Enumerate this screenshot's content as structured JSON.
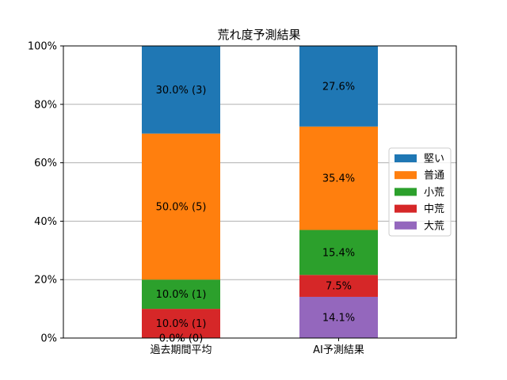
{
  "chart_data": {
    "type": "bar",
    "stacked": true,
    "title": "荒れ度予測結果",
    "categories": [
      "過去期間平均",
      "AI予測結果"
    ],
    "ylim": [
      0,
      100
    ],
    "yticks": [
      "0%",
      "20%",
      "40%",
      "60%",
      "80%",
      "100%"
    ],
    "ytick_values": [
      0,
      20,
      40,
      60,
      80,
      100
    ],
    "grid": "horizontal",
    "legend_position": "right",
    "series": [
      {
        "name": "大荒",
        "color": "#9467bd",
        "values": [
          0,
          14.1
        ],
        "labels": [
          "0.0% (0)",
          "14.1%"
        ]
      },
      {
        "name": "中荒",
        "color": "#d62728",
        "values": [
          10,
          7.5
        ],
        "labels": [
          "10.0% (1)",
          "7.5%"
        ]
      },
      {
        "name": "小荒",
        "color": "#2ca02c",
        "values": [
          10,
          15.4
        ],
        "labels": [
          "10.0% (1)",
          "15.4%"
        ]
      },
      {
        "name": "普通",
        "color": "#ff7f0e",
        "values": [
          50,
          35.4
        ],
        "labels": [
          "50.0% (5)",
          "35.4%"
        ]
      },
      {
        "name": "堅い",
        "color": "#1f77b4",
        "values": [
          30,
          27.6
        ],
        "labels": [
          "30.0% (3)",
          "27.6%"
        ]
      }
    ],
    "legend_order": [
      "堅い",
      "普通",
      "小荒",
      "中荒",
      "大荒"
    ]
  }
}
